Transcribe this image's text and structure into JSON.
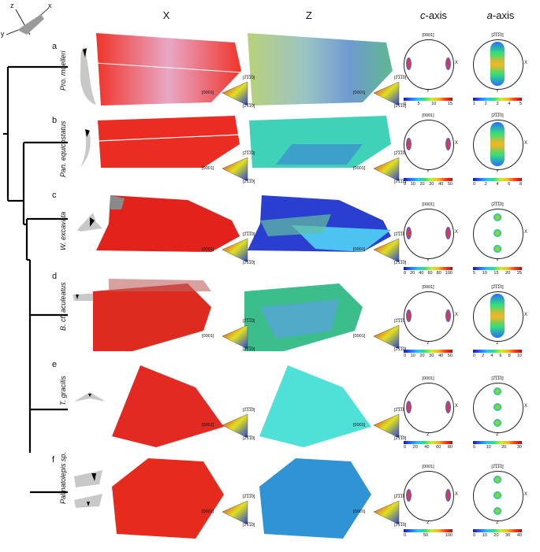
{
  "header": {
    "col_x": "X",
    "col_z": "Z",
    "col_c_prefix": "c",
    "col_c_suffix": "-axis",
    "col_a_prefix": "a",
    "col_a_suffix": "-axis"
  },
  "axes_glyph": {
    "z": "z",
    "x": "x",
    "y": "y"
  },
  "ipf_labels": {
    "top": "[2̅1̅1̅0]",
    "left": "[0001]",
    "bottom": "[2̅1̅1̅0]"
  },
  "rows": [
    {
      "letter": "a",
      "species": "Pro. muelleri",
      "c_top": "[0001]",
      "a_top": "[2̅1̅1̅0]",
      "c_side": "X",
      "a_side": "X",
      "c_bottom": "Y",
      "a_bottom": "Y",
      "c_ticks": [
        "0",
        "5",
        "10",
        "15"
      ],
      "a_ticks": [
        "1",
        "2",
        "3",
        "4",
        "5"
      ]
    },
    {
      "letter": "b",
      "species": "Pan. equicostatus",
      "c_top": "[0001]",
      "a_top": "[2̅1̅1̅0]",
      "c_side": "X",
      "a_side": "X",
      "c_bottom": "Y",
      "a_bottom": "Y",
      "c_ticks": [
        "0",
        "10",
        "20",
        "30",
        "40",
        "50"
      ],
      "a_ticks": [
        "0",
        "2",
        "4",
        "6",
        "8"
      ]
    },
    {
      "letter": "c",
      "species": "W. excavata",
      "c_top": "[0001]",
      "a_top": "[2̅1̅1̅0]",
      "c_side": "X",
      "a_side": "X",
      "c_bottom": "Y",
      "a_bottom": "Y",
      "c_ticks": [
        "0",
        "20",
        "40",
        "60",
        "80",
        "100"
      ],
      "a_ticks": [
        "5",
        "10",
        "15",
        "20",
        "25"
      ]
    },
    {
      "letter": "d",
      "species": "B. cf. aculeatus",
      "c_top": "[0001]",
      "a_top": "[2̅1̅1̅0]",
      "c_side": "X",
      "a_side": "X",
      "c_bottom": "Z",
      "a_bottom": "Z",
      "c_ticks": [
        "0",
        "10",
        "20",
        "30",
        "40",
        "50"
      ],
      "a_ticks": [
        "0",
        "2",
        "4",
        "6",
        "8",
        "10"
      ]
    },
    {
      "letter": "e",
      "species": "T. gracilis",
      "c_top": "[0001]",
      "a_top": "[2̅1̅1̅0]",
      "c_side": "X",
      "a_side": "X",
      "c_bottom": "Z",
      "a_bottom": "Z",
      "c_ticks": [
        "0",
        "20",
        "40",
        "60",
        "80"
      ],
      "a_ticks": [
        "0",
        "10",
        "20",
        "30"
      ]
    },
    {
      "letter": "f",
      "species": "Palmatolepis sp.",
      "c_top": "[0001]",
      "a_top": "[2̅1̅1̅0]",
      "c_side": "X",
      "a_side": "X",
      "c_bottom": "Z",
      "a_bottom": "Z",
      "c_ticks": [
        "0",
        "50",
        "100"
      ],
      "a_ticks": [
        "0",
        "10",
        "20",
        "30",
        "40"
      ]
    }
  ],
  "colors": {
    "x_map": "#e8271f",
    "z_map_a": "#3fa7d6",
    "z_map_b": "#3ee0c8",
    "tree": "#000000"
  }
}
